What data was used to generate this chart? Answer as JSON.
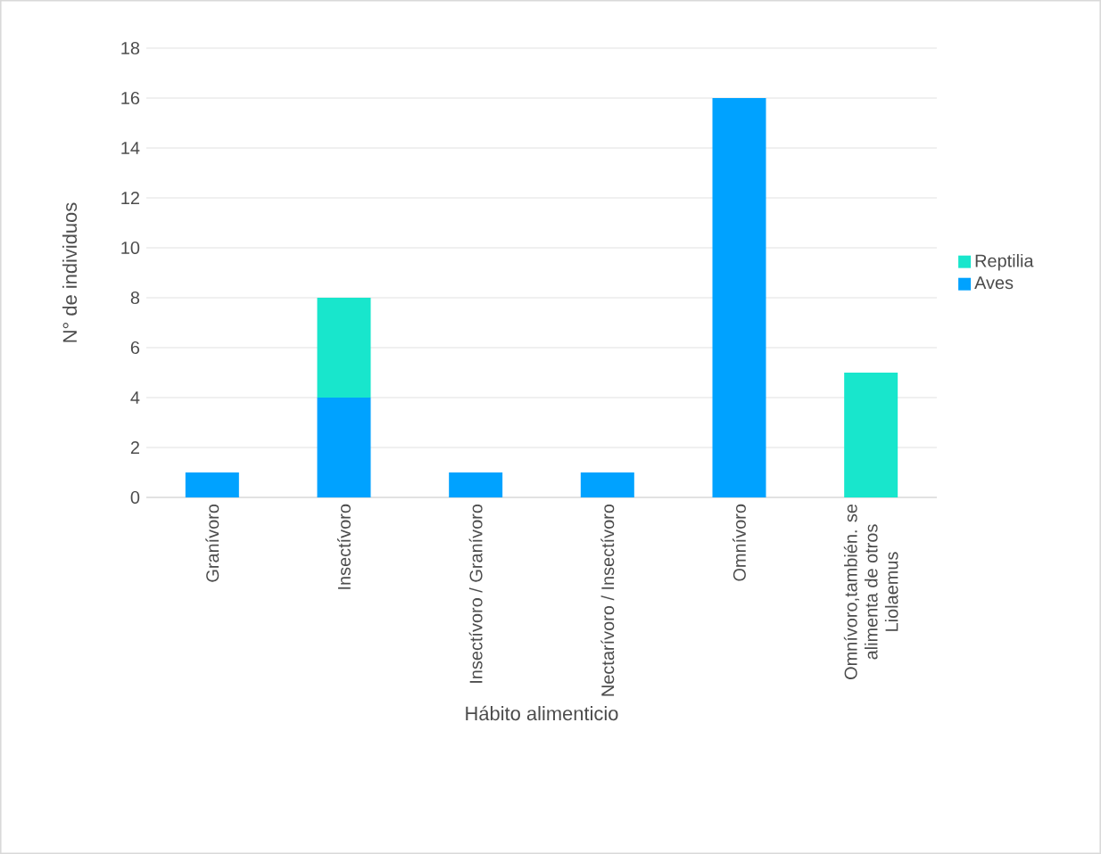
{
  "chart_data": {
    "type": "bar",
    "stacked": true,
    "xlabel": "Hábito alimenticio",
    "ylabel": "N° de individuos",
    "categories": [
      "Granívoro",
      "Insectívoro",
      "Insectívoro / Granívoro",
      "Nectarívoro / Insectívoro",
      "Omnívoro",
      "Omnívoro,también. se alimenta de otros Liolaemus"
    ],
    "series": [
      {
        "name": "Aves",
        "color": "#00a2ff",
        "values": [
          1,
          4,
          1,
          1,
          16,
          0
        ]
      },
      {
        "name": "Reptilia",
        "color": "#18e6cc",
        "values": [
          0,
          4,
          0,
          0,
          0,
          5
        ]
      }
    ],
    "ylim": [
      0,
      18
    ],
    "yticks": [
      0,
      2,
      4,
      6,
      8,
      10,
      12,
      14,
      16,
      18
    ],
    "grid": "y",
    "legend": "right"
  }
}
